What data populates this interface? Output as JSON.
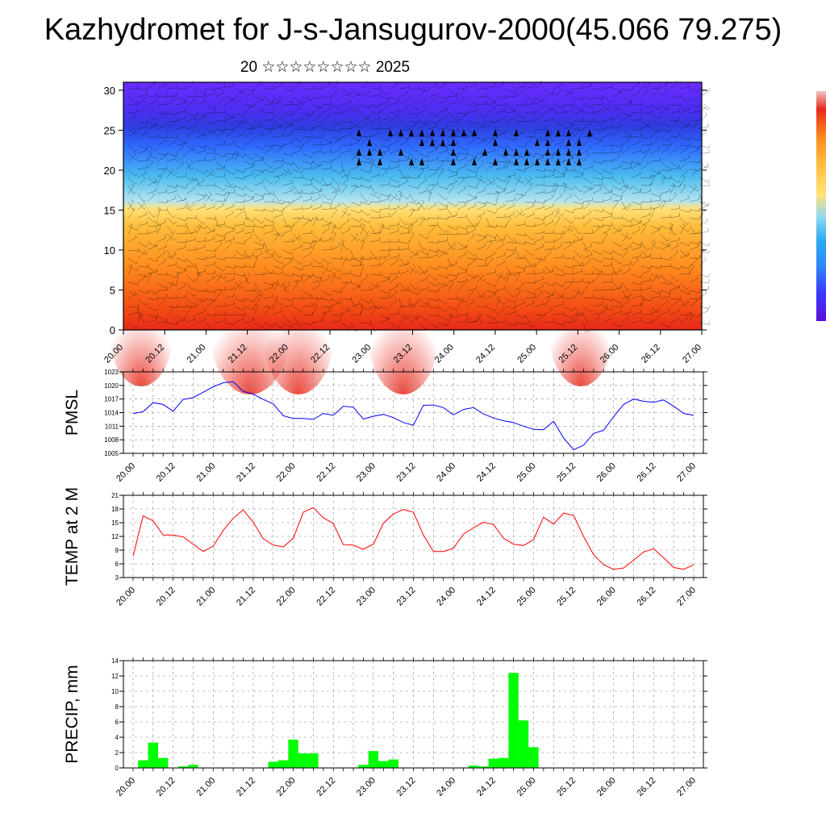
{
  "title": "Kazhydromet for J-s-Jansugurov-2000(45.066 79.275)",
  "subtitle": "20 ☆☆☆☆☆☆☆☆ 2025",
  "colors": {
    "pmsl_line": "#0000ff",
    "temp_line": "#ff0000",
    "precip_bar": "#00ff00",
    "colorbar": [
      "#5b0fd6",
      "#6a2cff",
      "#2f6bff",
      "#2aaaf0",
      "#8fd8f4",
      "#ffe27a",
      "#ffbe3c",
      "#ff8a1e",
      "#f24a14",
      "#e8281b"
    ]
  },
  "chart_data": [
    {
      "type": "heatmap",
      "ylabel": "",
      "ylim": [
        0,
        31
      ],
      "yticks": [
        0,
        5,
        10,
        15,
        20,
        25,
        30
      ],
      "x_tick_labels": [
        "20.00",
        "20.12",
        "21.00",
        "21.12",
        "22.00",
        "22.12",
        "23.00",
        "23.12",
        "24.00",
        "24.12",
        "25.00",
        "25.12",
        "26.00",
        "26.12",
        "27.00"
      ],
      "grid": false,
      "legend": "colorbar right"
    },
    {
      "type": "line",
      "ylabel": "PMSL",
      "ylim": [
        1005,
        1023
      ],
      "yticks": [
        1005,
        1008,
        1011,
        1014,
        1017,
        1020,
        1023
      ],
      "x_tick_labels": [
        "20.00",
        "20.12",
        "21.00",
        "21.12",
        "22.00",
        "22.12",
        "23.00",
        "23.12",
        "24.00",
        "24.12",
        "25.00",
        "25.12",
        "26.00",
        "26.12",
        "27.00"
      ],
      "x_hours": [
        0,
        3,
        6,
        9,
        12,
        15,
        18,
        21,
        24,
        27,
        30,
        33,
        36,
        39,
        42,
        45,
        48,
        51,
        54,
        57,
        60,
        63,
        66,
        69,
        72,
        75,
        78,
        81,
        84,
        87,
        90,
        93,
        96,
        99,
        102,
        105,
        108,
        111,
        114,
        117,
        120,
        123,
        126,
        129,
        132,
        135,
        138,
        141,
        144,
        147,
        150,
        153,
        156,
        159,
        162,
        165,
        168
      ],
      "values": [
        1013.8,
        1014.2,
        1016.2,
        1015.8,
        1014.3,
        1016.9,
        1017.3,
        1018.5,
        1019.7,
        1020.6,
        1020.8,
        1018.7,
        1018.1,
        1016.9,
        1015.9,
        1013.3,
        1012.7,
        1012.7,
        1012.5,
        1013.8,
        1013.4,
        1015.4,
        1015.2,
        1012.6,
        1013.2,
        1013.6,
        1012.9,
        1011.8,
        1011.2,
        1015.6,
        1015.7,
        1015.1,
        1013.5,
        1014.7,
        1015.1,
        1013.7,
        1012.8,
        1012.2,
        1011.8,
        1011.0,
        1010.3,
        1010.2,
        1012.1,
        1008.4,
        1005.8,
        1006.8,
        1009.4,
        1010.1,
        1013.1,
        1015.8,
        1017.0,
        1016.5,
        1016.3,
        1016.8,
        1015.4,
        1013.8,
        1013.4
      ],
      "grid": true
    },
    {
      "type": "line",
      "ylabel": "TEMP at 2 M",
      "ylim": [
        3,
        21
      ],
      "yticks": [
        3,
        6,
        9,
        12,
        15,
        18,
        21
      ],
      "x_tick_labels": [
        "20.00",
        "20.12",
        "21.00",
        "21.12",
        "22.00",
        "22.12",
        "23.00",
        "23.12",
        "24.00",
        "24.12",
        "25.00",
        "25.12",
        "26.00",
        "26.12",
        "27.00"
      ],
      "x_hours": [
        0,
        3,
        6,
        9,
        12,
        15,
        18,
        21,
        24,
        27,
        30,
        33,
        36,
        39,
        42,
        45,
        48,
        51,
        54,
        57,
        60,
        63,
        66,
        69,
        72,
        75,
        78,
        81,
        84,
        87,
        90,
        93,
        96,
        99,
        102,
        105,
        108,
        111,
        114,
        117,
        120,
        123,
        126,
        129,
        132,
        135,
        138,
        141,
        144,
        147,
        150,
        153,
        156,
        159,
        162,
        165,
        168
      ],
      "values": [
        7.7,
        16.5,
        15.4,
        12.3,
        12.3,
        11.9,
        10.3,
        8.7,
        9.9,
        13.3,
        16.0,
        17.8,
        15.1,
        11.5,
        10.1,
        9.7,
        11.6,
        17.3,
        18.3,
        16.1,
        14.8,
        10.2,
        10.1,
        9.2,
        10.3,
        14.9,
        16.9,
        17.9,
        17.3,
        12.3,
        8.7,
        8.7,
        9.4,
        12.5,
        13.9,
        15.1,
        14.6,
        11.6,
        10.3,
        10.0,
        11.3,
        16.2,
        14.7,
        17.1,
        16.6,
        12.0,
        8.0,
        5.8,
        4.8,
        5.1,
        6.8,
        8.6,
        9.3,
        7.3,
        5.2,
        4.8,
        5.8
      ],
      "grid": true
    },
    {
      "type": "bar",
      "ylabel": "PRECIP, mm",
      "ylim": [
        0,
        14
      ],
      "yticks": [
        0,
        2,
        4,
        6,
        8,
        10,
        12,
        14
      ],
      "x_tick_labels": [
        "20.00",
        "20.12",
        "21.00",
        "21.12",
        "22.00",
        "22.12",
        "23.00",
        "23.12",
        "24.00",
        "24.12",
        "25.00",
        "25.12",
        "26.00",
        "26.12",
        "27.00"
      ],
      "x_hours": [
        3,
        6,
        9,
        15,
        18,
        42,
        45,
        48,
        51,
        54,
        69,
        72,
        75,
        78,
        102,
        105,
        108,
        111,
        114,
        117,
        120,
        135,
        138,
        141,
        144,
        147,
        150,
        153
      ],
      "values": [
        1.0,
        3.3,
        1.3,
        0.2,
        0.4,
        0.8,
        1.0,
        3.7,
        1.9,
        1.9,
        0.4,
        2.2,
        0.9,
        1.1,
        0.3,
        0.2,
        1.2,
        1.3,
        12.4,
        6.2,
        2.7,
        0,
        0,
        0,
        0,
        0,
        0,
        0
      ],
      "grid": true
    }
  ]
}
